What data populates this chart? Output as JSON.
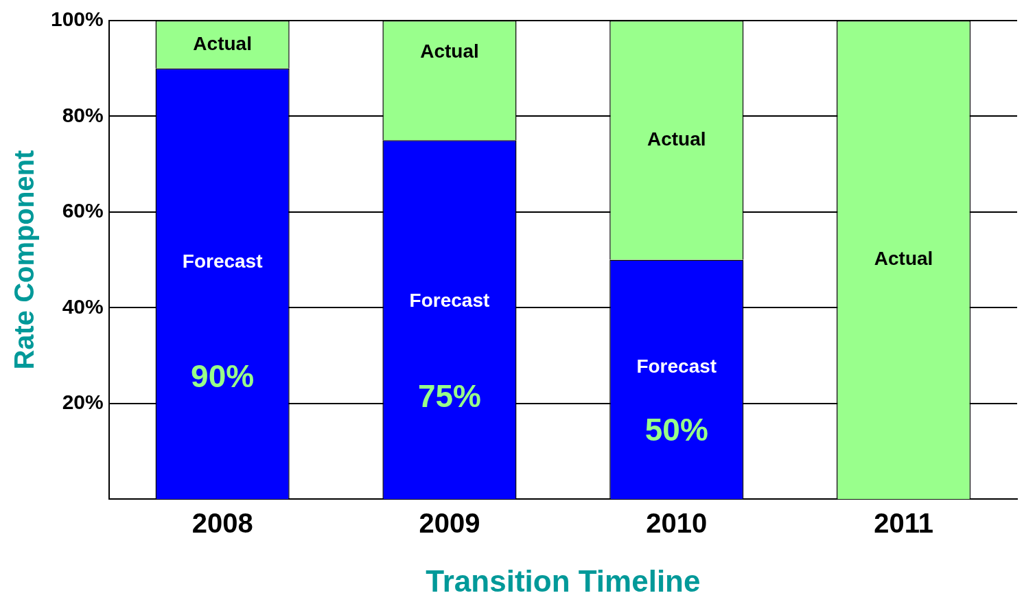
{
  "chart_data": {
    "type": "bar",
    "stacked": true,
    "xlabel": "Transition Timeline",
    "ylabel": "Rate Component",
    "categories": [
      "2008",
      "2009",
      "2010",
      "2011"
    ],
    "series": [
      {
        "name": "Forecast",
        "color": "#0000ff",
        "values": [
          90,
          75,
          50,
          null
        ],
        "value_labels": [
          "90%",
          "75%",
          "50%",
          null
        ]
      },
      {
        "name": "Actual",
        "color": "#99ff8c",
        "values": [
          10,
          25,
          50,
          100
        ]
      }
    ],
    "ylim": [
      0,
      100
    ],
    "yticks": [
      {
        "value": 20,
        "label": "20%"
      },
      {
        "value": 40,
        "label": "40%"
      },
      {
        "value": 60,
        "label": "60%"
      },
      {
        "value": 80,
        "label": "80%"
      },
      {
        "value": 100,
        "label": "100%"
      }
    ],
    "grid": "y",
    "legend": false
  }
}
